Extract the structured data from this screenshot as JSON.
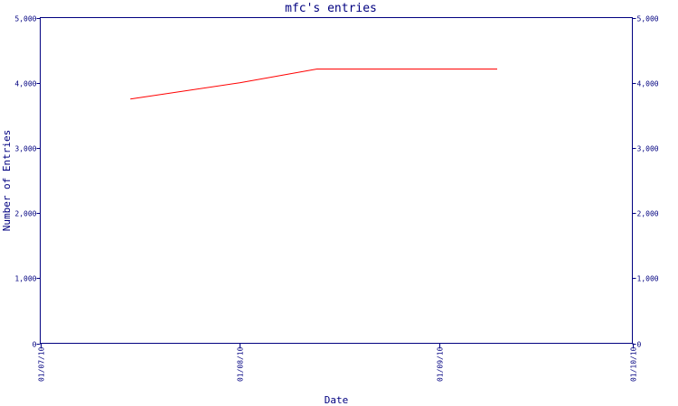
{
  "chart_data": {
    "type": "line",
    "title": "mfc's entries",
    "xlabel": "Date",
    "ylabel": "Number of Entries",
    "x_ticks": [
      "01/07/10",
      "01/08/10",
      "01/09/10",
      "01/10/10"
    ],
    "y_ticks": [
      "0",
      "1,000",
      "2,000",
      "3,000",
      "4,000",
      "5,000"
    ],
    "ylim": [
      0,
      5000
    ],
    "xlim": [
      "2010-07-01",
      "2010-10-01"
    ],
    "secondary_y_axis": true,
    "grid": false,
    "series": [
      {
        "color": "#ff0000",
        "points": [
          {
            "x": "2010-07-15",
            "y": 3750
          },
          {
            "x": "2010-08-01",
            "y": 4000
          },
          {
            "x": "2010-08-13",
            "y": 4210
          },
          {
            "x": "2010-09-10",
            "y": 4210
          }
        ]
      }
    ]
  }
}
